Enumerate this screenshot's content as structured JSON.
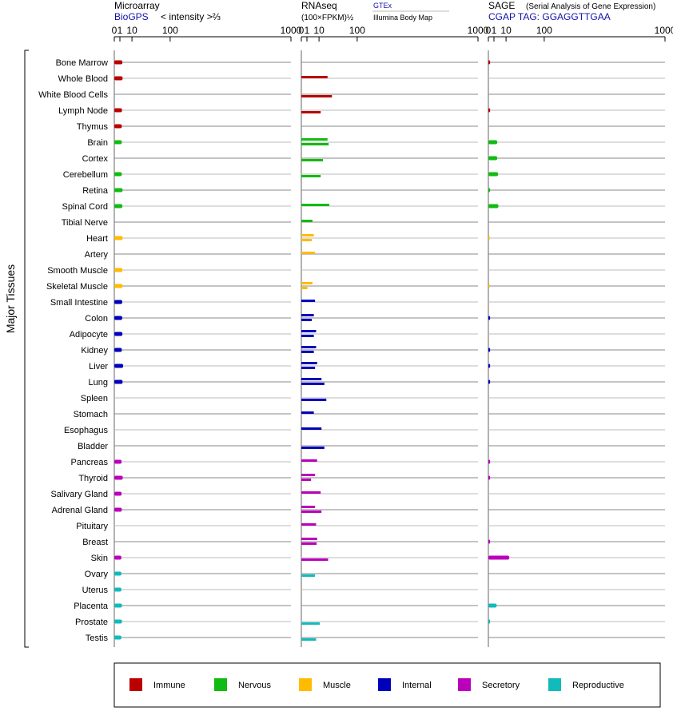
{
  "panels": {
    "microarray": {
      "title": "Microarray",
      "source": "BioGPS",
      "unit": "< intensity >⅔"
    },
    "rnaseq": {
      "title": "RNAseq",
      "unit": "(100×FPKM)½",
      "source1": "GTEx",
      "source2": "Illumina Body Map"
    },
    "sage": {
      "title": "SAGE",
      "subtitle": "(Serial Analysis of Gene Expression)",
      "tag": "CGAP TAG: GGAGGTTGAA"
    }
  },
  "ylabel": "Major Tissues",
  "colors": {
    "Immune": "#bb0000",
    "Nervous": "#11bb11",
    "Muscle": "#ffbb00",
    "Internal": "#0000bb",
    "Secretory": "#bb00bb",
    "Reproductive": "#11bbbb"
  },
  "chart_data": {
    "type": "bar",
    "x_scale": "sqrt",
    "xlim": [
      0,
      1000
    ],
    "ticks": [
      "0",
      "1",
      "10",
      "100",
      "1000"
    ],
    "tick_values": [
      0,
      1,
      10,
      100,
      1000
    ],
    "categories": [
      "Bone Marrow",
      "Whole Blood",
      "White Blood Cells",
      "Lymph Node",
      "Thymus",
      "Brain",
      "Cortex",
      "Cerebellum",
      "Retina",
      "Spinal Cord",
      "Tibial Nerve",
      "Heart",
      "Artery",
      "Smooth Muscle",
      "Skeletal Muscle",
      "Small Intestine",
      "Colon",
      "Adipocyte",
      "Kidney",
      "Liver",
      "Lung",
      "Spleen",
      "Stomach",
      "Esophagus",
      "Bladder",
      "Pancreas",
      "Thyroid",
      "Salivary Gland",
      "Adrenal Gland",
      "Pituitary",
      "Breast",
      "Skin",
      "Ovary",
      "Uterus",
      "Placenta",
      "Prostate",
      "Testis"
    ],
    "groups": [
      "Immune",
      "Immune",
      "Immune",
      "Immune",
      "Immune",
      "Nervous",
      "Nervous",
      "Nervous",
      "Nervous",
      "Nervous",
      "Nervous",
      "Muscle",
      "Muscle",
      "Muscle",
      "Muscle",
      "Internal",
      "Internal",
      "Internal",
      "Internal",
      "Internal",
      "Internal",
      "Internal",
      "Internal",
      "Internal",
      "Internal",
      "Secretory",
      "Secretory",
      "Secretory",
      "Secretory",
      "Secretory",
      "Secretory",
      "Secretory",
      "Reproductive",
      "Reproductive",
      "Reproductive",
      "Reproductive",
      "Reproductive"
    ],
    "microarray": [
      2.1,
      2.2,
      null,
      1.9,
      1.8,
      1.8,
      null,
      1.8,
      2.2,
      2.1,
      null,
      2.2,
      null,
      2.1,
      2.2,
      2.0,
      2.0,
      2.1,
      1.8,
      2.5,
      2.2,
      null,
      null,
      null,
      null,
      1.7,
      2.3,
      1.7,
      1.8,
      null,
      null,
      1.6,
      1.6,
      1.6,
      1.9,
      1.9,
      1.6
    ],
    "rnaseq_gtex": [
      null,
      22,
      null,
      null,
      null,
      22,
      null,
      null,
      null,
      25,
      4,
      5,
      6,
      null,
      4,
      6,
      5,
      7,
      7,
      8,
      13,
      null,
      5,
      13,
      null,
      8,
      6,
      12,
      6,
      7,
      8,
      null,
      null,
      null,
      null,
      null,
      null
    ],
    "rnaseq_ibm": [
      null,
      null,
      30,
      12,
      null,
      24,
      15,
      12,
      null,
      null,
      null,
      3.5,
      null,
      null,
      1.2,
      null,
      3.5,
      5,
      5,
      6,
      17,
      20,
      null,
      null,
      17,
      null,
      3,
      null,
      13,
      null,
      7.5,
      23,
      6,
      null,
      null,
      11,
      7
    ],
    "sage": [
      0.1,
      null,
      null,
      0.1,
      null,
      2.5,
      2.5,
      3.0,
      0.1,
      3.2,
      null,
      0.05,
      null,
      null,
      0.05,
      null,
      0.1,
      null,
      0.1,
      0.1,
      0.1,
      null,
      null,
      null,
      null,
      0.1,
      0.1,
      null,
      null,
      null,
      0.1,
      14,
      null,
      null,
      2.2,
      0.1,
      null
    ]
  },
  "legend": [
    "Immune",
    "Nervous",
    "Muscle",
    "Internal",
    "Secretory",
    "Reproductive"
  ]
}
